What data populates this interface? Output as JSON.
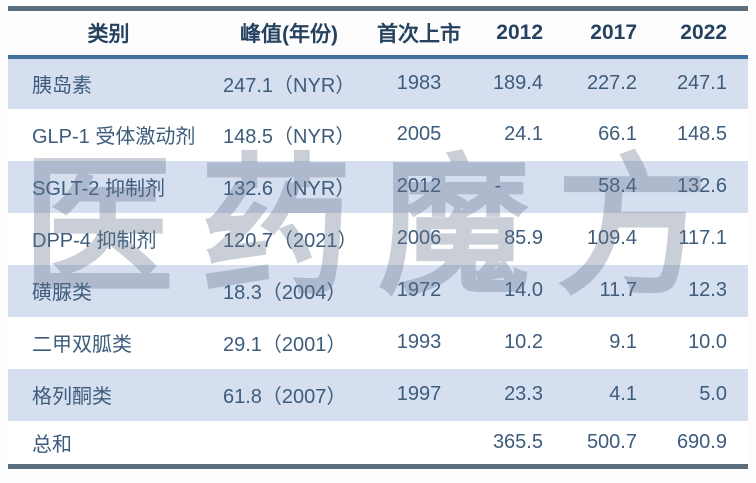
{
  "watermark": {
    "text": "医药魔方"
  },
  "colors": {
    "outer_border": "#5b6e7d",
    "header_underline": "#44709c",
    "header_text": "#25425f",
    "cell_text": "#3d5c7c",
    "stripe_row_bg": "#d6dff0",
    "watermark_color": "rgba(100,115,140,0.35)"
  },
  "table": {
    "columns": [
      {
        "label": "类别"
      },
      {
        "label": "峰值(年份)"
      },
      {
        "label": "首次上市"
      },
      {
        "label": "2012"
      },
      {
        "label": "2017"
      },
      {
        "label": "2022"
      }
    ],
    "rows": [
      {
        "category": "胰岛素",
        "peak": "247.1（NYR）",
        "first_listed": "1983",
        "y2012": "189.4",
        "y2017": "227.2",
        "y2022": "247.1"
      },
      {
        "category": "GLP-1 受体激动剂",
        "peak": "148.5（NYR）",
        "first_listed": "2005",
        "y2012": "24.1",
        "y2017": "66.1",
        "y2022": "148.5"
      },
      {
        "category": "SGLT-2 抑制剂",
        "peak": "132.6（NYR）",
        "first_listed": "2012",
        "y2012": "-",
        "y2017": "58.4",
        "y2022": "132.6"
      },
      {
        "category": "DPP-4 抑制剂",
        "peak": "120.7（2021）",
        "first_listed": "2006",
        "y2012": "85.9",
        "y2017": "109.4",
        "y2022": "117.1"
      },
      {
        "category": "磺脲类",
        "peak": "18.3（2004）",
        "first_listed": "1972",
        "y2012": "14.0",
        "y2017": "11.7",
        "y2022": "12.3"
      },
      {
        "category": "二甲双胍类",
        "peak": "29.1（2001）",
        "first_listed": "1993",
        "y2012": "10.2",
        "y2017": "9.1",
        "y2022": "10.0"
      },
      {
        "category": "格列酮类",
        "peak": "61.8（2007）",
        "first_listed": "1997",
        "y2012": "23.3",
        "y2017": "4.1",
        "y2022": "5.0"
      },
      {
        "category": "总和",
        "peak": "",
        "first_listed": "",
        "y2012": "365.5",
        "y2017": "500.7",
        "y2022": "690.9"
      }
    ]
  }
}
